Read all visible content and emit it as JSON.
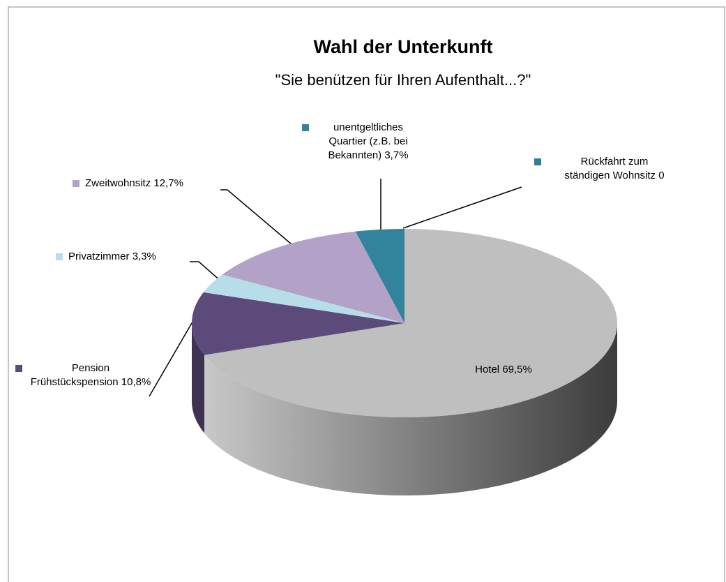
{
  "chart_data": {
    "type": "pie3d",
    "title": "Wahl der Unterkunft",
    "subtitle": "\"Sie benützen für Ihren Aufenthalt...?\"",
    "categories": [
      "Hotel",
      "Pension Frühstückspension",
      "Privatzimmer",
      "Zweitwohnsitz",
      "unentgeltliches Quartier (z.B. bei Bekannten)",
      "Rückfahrt zum ständigen Wohnsitz"
    ],
    "values": [
      69.5,
      10.8,
      3.3,
      12.7,
      3.7,
      0
    ],
    "value_labels": [
      "69,5%",
      "10,8%",
      "3,3%",
      "12,7%",
      "3,7%",
      "0"
    ],
    "colors": [
      "#bfbfbf",
      "#5c4a7a",
      "#b7dde8",
      "#b3a2c7",
      "#31849b",
      "#2e7f93"
    ]
  }
}
